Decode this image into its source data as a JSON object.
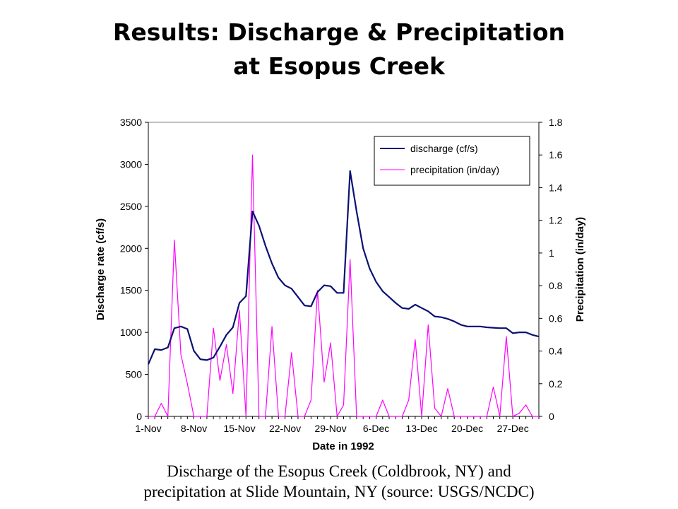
{
  "slide": {
    "title_line1": "Results:  Discharge & Precipitation",
    "title_line2": "at Esopus Creek",
    "caption_line1": "Discharge of the Esopus Creek (Coldbrook, NY) and",
    "caption_line2": "precipitation at Slide Mountain, NY (source: USGS/NCDC)"
  },
  "chart_data": {
    "type": "line",
    "title": "",
    "xlabel": "Date in 1992",
    "ylabel": "Discharge rate (cf/s)",
    "y2label": "Precipitation (in/day)",
    "x": [
      "1-Nov",
      "2-Nov",
      "3-Nov",
      "4-Nov",
      "5-Nov",
      "6-Nov",
      "7-Nov",
      "8-Nov",
      "9-Nov",
      "10-Nov",
      "11-Nov",
      "12-Nov",
      "13-Nov",
      "14-Nov",
      "15-Nov",
      "16-Nov",
      "17-Nov",
      "18-Nov",
      "19-Nov",
      "20-Nov",
      "21-Nov",
      "22-Nov",
      "23-Nov",
      "24-Nov",
      "25-Nov",
      "26-Nov",
      "27-Nov",
      "28-Nov",
      "29-Nov",
      "30-Nov",
      "1-Dec",
      "2-Dec",
      "3-Dec",
      "4-Dec",
      "5-Dec",
      "6-Dec",
      "7-Dec",
      "8-Dec",
      "9-Dec",
      "10-Dec",
      "11-Dec",
      "12-Dec",
      "13-Dec",
      "14-Dec",
      "15-Dec",
      "16-Dec",
      "17-Dec",
      "18-Dec",
      "19-Dec",
      "20-Dec",
      "21-Dec",
      "22-Dec",
      "23-Dec",
      "24-Dec",
      "25-Dec",
      "26-Dec",
      "27-Dec",
      "28-Dec",
      "29-Dec",
      "30-Dec",
      "31-Dec"
    ],
    "x_tick_labels": [
      "1-Nov",
      "8-Nov",
      "15-Nov",
      "22-Nov",
      "29-Nov",
      "6-Dec",
      "13-Dec",
      "20-Dec",
      "27-Dec"
    ],
    "ylim": [
      0,
      3500
    ],
    "y_ticks": [
      0,
      500,
      1000,
      1500,
      2000,
      2500,
      3000,
      3500
    ],
    "y2lim": [
      0,
      1.8
    ],
    "y2_ticks": [
      "0",
      "0.2",
      "0.4",
      "0.6",
      "0.8",
      "1",
      "1.2",
      "1.4",
      "1.6",
      "1.8"
    ],
    "grid": false,
    "legend_position": "top-right",
    "series": [
      {
        "name": "discharge (cf/s)",
        "axis": "left",
        "color": "#0a1172",
        "values": [
          620,
          800,
          790,
          820,
          1050,
          1070,
          1040,
          780,
          680,
          670,
          700,
          830,
          970,
          1060,
          1350,
          1430,
          2440,
          2270,
          2030,
          1820,
          1650,
          1560,
          1520,
          1420,
          1320,
          1310,
          1480,
          1560,
          1550,
          1470,
          1470,
          2920,
          2440,
          2000,
          1760,
          1600,
          1490,
          1420,
          1350,
          1290,
          1280,
          1330,
          1290,
          1250,
          1190,
          1180,
          1160,
          1130,
          1090,
          1070,
          1070,
          1070,
          1060,
          1055,
          1050,
          1050,
          990,
          1000,
          1000,
          970,
          950
        ]
      },
      {
        "name": "precipitation (in/day)",
        "axis": "right",
        "color": "#ff00ff",
        "values": [
          0,
          0,
          0.08,
          0,
          1.08,
          0.38,
          0.2,
          0,
          0,
          0,
          0.54,
          0.22,
          0.44,
          0.14,
          0.65,
          0,
          1.6,
          0,
          0,
          0.55,
          0,
          0,
          0.39,
          0,
          0,
          0.1,
          0.77,
          0.21,
          0.45,
          0,
          0.07,
          0.96,
          0,
          0,
          0,
          0,
          0.1,
          0,
          0,
          0,
          0.1,
          0.47,
          0,
          0.56,
          0.05,
          0,
          0.17,
          0,
          0,
          0,
          0,
          0,
          0,
          0.18,
          0,
          0.49,
          0,
          0.02,
          0.07,
          0,
          0
        ]
      }
    ]
  }
}
